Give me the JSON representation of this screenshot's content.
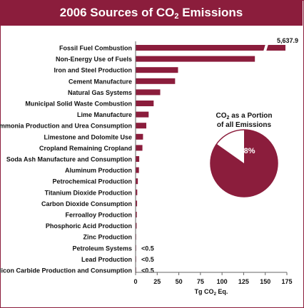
{
  "title": {
    "prefix": "2006 Sources of CO",
    "sub": "2",
    "suffix": " Emissions"
  },
  "colors": {
    "bar": "#8b1d3c",
    "axis": "#666666",
    "text": "#111111"
  },
  "chart_data": {
    "type": "bar",
    "orientation": "horizontal",
    "categories": [
      "Fossil Fuel Combustion",
      "Non-Energy Use of Fuels",
      "Iron and Steel Production",
      "Cement Manufacture",
      "Natural Gas Systems",
      "Municipal Solid Waste Combustion",
      "Lime Manufacture",
      "Ammonia Production and Urea Consumption",
      "Limestone and Dolomite Use",
      "Cropland Remaining Cropland",
      "Soda Ash Manufacture and Consumption",
      "Aluminum Production",
      "Petrochemical Production",
      "Titanium Dioxide Production",
      "Carbon Dioxide Consumption",
      "Ferroalloy Production",
      "Phosphoric Acid Production",
      "Zinc Production",
      "Petroleum Systems",
      "Lead Production",
      "Silicon Carbide Production and Consumption"
    ],
    "values": [
      5637.9,
      138.0,
      49.1,
      45.7,
      28.5,
      20.9,
      15.1,
      12.4,
      8.6,
      7.9,
      4.2,
      3.9,
      2.6,
      1.9,
      1.7,
      1.4,
      1.2,
      0.5,
      0.3,
      0.3,
      0.2
    ],
    "data_labels": [
      "5,637.9",
      "",
      "",
      "",
      "",
      "",
      "",
      "",
      "",
      "",
      "",
      "",
      "",
      "",
      "",
      "",
      "",
      "",
      "<0.5",
      "<0.5",
      "<0.5"
    ],
    "axis_break": true,
    "xlim": [
      0,
      175
    ],
    "xticks": [
      "0",
      "25",
      "50",
      "75",
      "100",
      "125",
      "150",
      "175"
    ],
    "xlabel": {
      "main": "Tg CO",
      "sub": "2",
      "suffix": " Eq."
    },
    "grid": false,
    "inset": {
      "type": "pie",
      "title_line1": {
        "main": "CO",
        "sub": "2",
        "suffix": " as a Portion"
      },
      "title_line2": "of all Emissions",
      "value_percent": 84.8,
      "label": "84.8%"
    }
  }
}
